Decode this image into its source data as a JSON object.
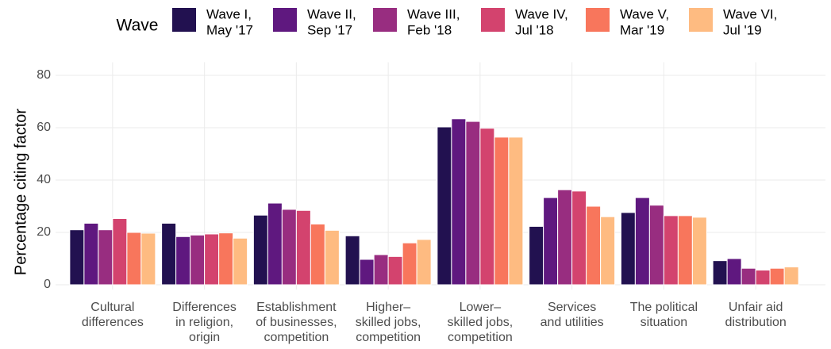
{
  "chart_data": {
    "type": "bar",
    "ylabel": "Percentage citing factor",
    "legend_title": "Wave",
    "legend_position": "top",
    "grid": true,
    "categories": [
      [
        "Cultural",
        "differences"
      ],
      [
        "Differences",
        "in religion,",
        "origin"
      ],
      [
        "Establishment",
        "of businesses,",
        "competition"
      ],
      [
        "Higher–",
        "skilled jobs,",
        "competition"
      ],
      [
        "Lower–",
        "skilled jobs,",
        "competition"
      ],
      [
        "Services",
        "and utilities"
      ],
      [
        "The political",
        "situation"
      ],
      [
        "Unfair aid",
        "distribution"
      ]
    ],
    "series": [
      {
        "name": [
          "Wave I,",
          "May '17"
        ],
        "color": "#221150",
        "values": [
          21,
          23.5,
          26.6,
          18.7,
          60.3,
          22.3,
          27.6,
          9.2
        ]
      },
      {
        "name": [
          "Wave II,",
          "Sep '17"
        ],
        "color": "#5f187f",
        "values": [
          23.5,
          18.4,
          31.2,
          9.7,
          63.4,
          33.3,
          33.3,
          10
        ]
      },
      {
        "name": [
          "Wave III,",
          "Feb '18"
        ],
        "color": "#982d80",
        "values": [
          21,
          19,
          28.8,
          11.5,
          62.4,
          36.3,
          30.4,
          6.3
        ]
      },
      {
        "name": [
          "Wave IV,",
          "Jul '18"
        ],
        "color": "#d3436e",
        "values": [
          25.3,
          19.4,
          28.4,
          10.8,
          59.8,
          35.8,
          26.4,
          5.6
        ]
      },
      {
        "name": [
          "Wave V,",
          "Mar '19"
        ],
        "color": "#f8765c",
        "values": [
          20,
          19.8,
          23.2,
          16,
          56.4,
          30,
          26.4,
          6.3
        ]
      },
      {
        "name": [
          "Wave VI,",
          "Jul '19"
        ],
        "color": "#febb81",
        "values": [
          19.7,
          17.8,
          20.8,
          17.3,
          56.4,
          26,
          25.8,
          6.8
        ]
      }
    ],
    "ylim": [
      0,
      85
    ],
    "yticks": [
      0,
      20,
      40,
      60,
      80
    ]
  }
}
